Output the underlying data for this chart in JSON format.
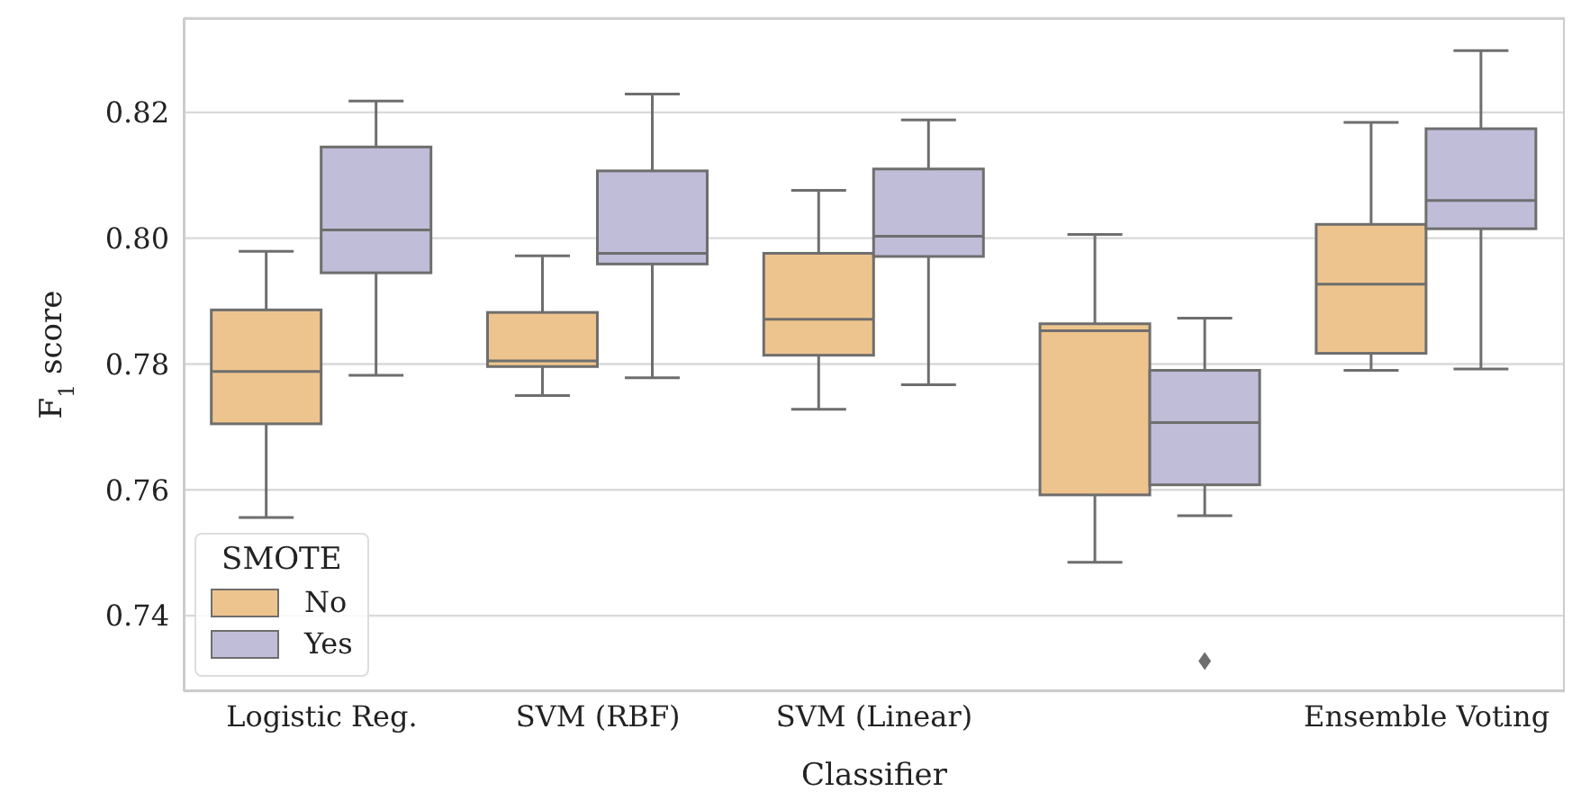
{
  "chart_data": {
    "type": "box",
    "xlabel": "Classifier",
    "ylabel": "F$_{1}$ score",
    "legend_title": "SMOTE",
    "categories": [
      "Logistic Reg.",
      "SVM (RBF)",
      "SVM (Linear)",
      null,
      "Ensemble Voting"
    ],
    "ylim": [
      0.728,
      0.835
    ],
    "yticks": [
      0.74,
      0.76,
      0.78,
      {
        "value": 0.8,
        "label": "0.80"
      },
      0.82
    ],
    "grid": "y",
    "legend": "bottom left",
    "series": [
      {
        "name": "No",
        "color": "#eec48e",
        "boxes": [
          {
            "low": 0.7556,
            "q1": 0.7705,
            "median": 0.7788,
            "q3": 0.7886,
            "high": 0.7979
          },
          {
            "low": 0.775,
            "q1": 0.7796,
            "median": 0.7805,
            "q3": 0.7882,
            "high": 0.7972
          },
          {
            "low": 0.7728,
            "q1": 0.7814,
            "median": 0.7871,
            "q3": 0.7976,
            "high": 0.8076
          },
          {
            "low": 0.7485,
            "q1": 0.7592,
            "median": 0.7853,
            "q3": 0.7864,
            "high": 0.8006
          },
          {
            "low": 0.779,
            "q1": 0.7817,
            "median": 0.7927,
            "q3": 0.8022,
            "high": 0.8184
          }
        ]
      },
      {
        "name": "Yes",
        "color": "#c0bdd8",
        "boxes": [
          {
            "low": 0.7782,
            "q1": 0.7945,
            "median": 0.8013,
            "q3": 0.8145,
            "high": 0.8218
          },
          {
            "low": 0.7778,
            "q1": 0.7959,
            "median": 0.7976,
            "q3": 0.8107,
            "high": 0.8229
          },
          {
            "low": 0.7767,
            "q1": 0.7971,
            "median": 0.8003,
            "q3": 0.811,
            "high": 0.8188
          },
          {
            "low": 0.7559,
            "q1": 0.7608,
            "median": 0.7707,
            "q3": 0.779,
            "high": 0.7873,
            "outliers": [
              0.7328
            ]
          },
          {
            "low": 0.7792,
            "q1": 0.8015,
            "median": 0.806,
            "q3": 0.8174,
            "high": 0.8298
          }
        ]
      }
    ]
  }
}
